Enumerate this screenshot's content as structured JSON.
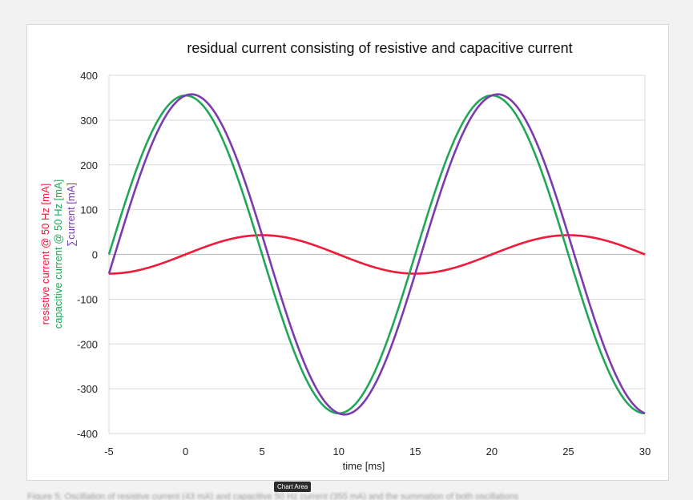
{
  "chart_area_tooltip": "Chart Area",
  "caption": "Figure 5: Oscillation of resistive current (43 mA) and capacitive 50 Hz current (355 mA) and the summation of both oscillations",
  "colors": {
    "resistive": "#ee1c3a",
    "capacitive": "#22a65a",
    "sum": "#7a3bb0",
    "grid": "#d9d9d9"
  },
  "chart_data": {
    "type": "line",
    "title": "residual current consisting of resistive and capacitive current",
    "xlabel": "time [ms]",
    "ylabel_lines": [
      {
        "text": "resistive current @ 50 Hz [mA]",
        "color_key": "resistive"
      },
      {
        "text": "capacitive current @ 50 Hz [mA]",
        "color_key": "capacitive"
      },
      {
        "text": "∑current [mA]",
        "color_key": "sum"
      }
    ],
    "xlim": [
      -5,
      30
    ],
    "ylim": [
      -400,
      400
    ],
    "xticks": [
      -5,
      0,
      5,
      10,
      15,
      20,
      25,
      30
    ],
    "yticks": [
      -400,
      -300,
      -200,
      -100,
      0,
      100,
      200,
      300,
      400
    ],
    "grid": "horizontal",
    "series": [
      {
        "name": "resistive current @ 50 Hz [mA]",
        "color_key": "resistive",
        "x": [
          -5,
          -2.5,
          0,
          2.5,
          5,
          7.5,
          10,
          12.5,
          15,
          17.5,
          20,
          22.5,
          25,
          27.5,
          30
        ],
        "y": [
          -43,
          -30.4,
          0,
          30.4,
          43,
          30.4,
          0,
          -30.4,
          -43,
          -30.4,
          0,
          30.4,
          43,
          30.4,
          0
        ]
      },
      {
        "name": "capacitive current @ 50 Hz [mA]",
        "color_key": "capacitive",
        "x": [
          -5,
          -2.5,
          0,
          2.5,
          5,
          7.5,
          10,
          12.5,
          15,
          17.5,
          20,
          22.5,
          25,
          27.5,
          30
        ],
        "y": [
          0,
          251,
          355,
          251,
          0,
          -251,
          -355,
          -251,
          0,
          251,
          355,
          251,
          0,
          -251,
          -355
        ]
      },
      {
        "name": "∑current [mA]",
        "color_key": "sum",
        "x": [
          -5,
          -2.5,
          0,
          2.5,
          5,
          7.5,
          10,
          12.5,
          15,
          17.5,
          20,
          22.5,
          25,
          27.5,
          30
        ],
        "y": [
          -43,
          220.6,
          355,
          281.4,
          43,
          -220.6,
          -355,
          -281.4,
          -43,
          220.6,
          355,
          281.4,
          43,
          -220.6,
          -355
        ]
      }
    ]
  }
}
